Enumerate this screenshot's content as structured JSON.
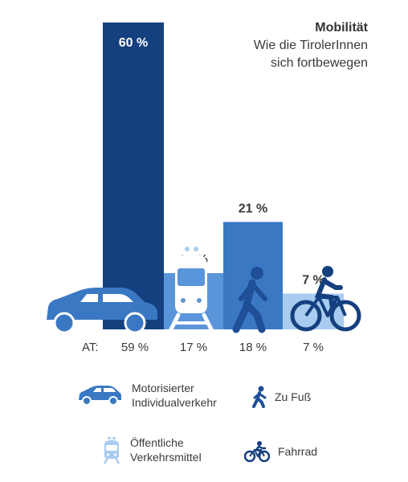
{
  "header": {
    "title": "Mobilität",
    "subtitle_line1": "Wie die TirolerInnen",
    "subtitle_line2": "sich fortbewegen"
  },
  "colors": {
    "motorized": "#15407f",
    "public": "#5b95d9",
    "walk": "#3a78c4",
    "bike": "#a8ccf0",
    "icon_car": "#3a78c4",
    "icon_dark": "#1f4f96",
    "value_label": "#3a3a3a"
  },
  "chart_data": {
    "type": "bar",
    "categories": [
      "Motorisierter Individualverkehr",
      "Öffentliche Verkehrsmittel",
      "Zu Fuß",
      "Fahrrad"
    ],
    "values": [
      60,
      11,
      21,
      7
    ],
    "value_labels": [
      "60 %",
      "11 %",
      "21 %",
      "7 %"
    ],
    "at_prefix": "AT:",
    "at_values": [
      59,
      17,
      18,
      7
    ],
    "at_labels": [
      "59 %",
      "17 %",
      "18 %",
      "7 %"
    ],
    "title": "Mobilität",
    "subtitle": "Wie die TirolerInnen sich fortbewegen",
    "unit": "%",
    "ylim": [
      0,
      60
    ],
    "grid": false,
    "icons": [
      "car-icon",
      "train-icon",
      "walk-icon",
      "bike-icon"
    ]
  },
  "legend": {
    "items": [
      {
        "label": "Motorisierter\nIndividualverkehr",
        "icon": "car-icon"
      },
      {
        "label": "Zu Fuß",
        "icon": "walk-icon"
      },
      {
        "label": "Öffentliche\nVerkehrsmittel",
        "icon": "train-icon"
      },
      {
        "label": "Fahrrad",
        "icon": "bike-icon"
      }
    ]
  }
}
